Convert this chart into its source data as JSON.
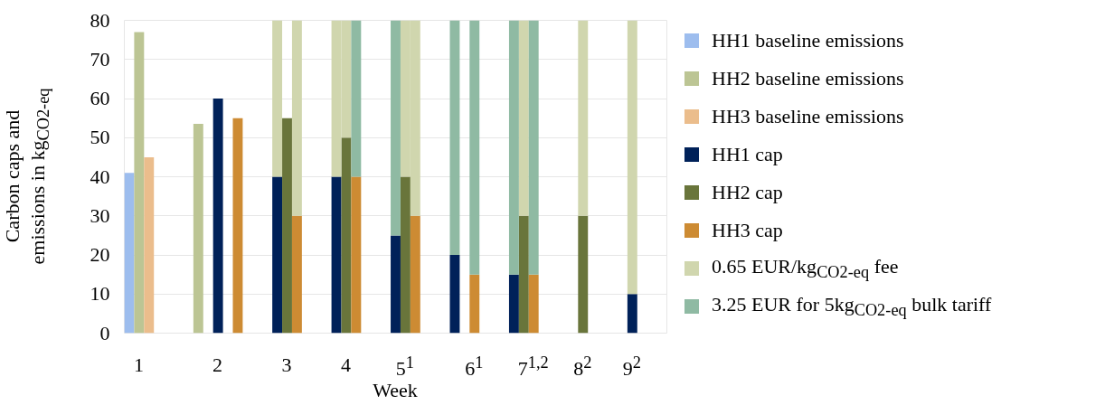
{
  "chart_data": {
    "type": "bar",
    "stacked": true,
    "xlabel": "Week",
    "ylabel": "Carbon caps and emissions in kg$_{CO2-eq}$",
    "categories": [
      null,
      "1",
      null,
      null,
      null,
      null,
      null,
      null,
      null,
      "2",
      null,
      null,
      null,
      null,
      null,
      null,
      "3",
      null,
      null,
      null,
      null,
      null,
      "4",
      null,
      null,
      null,
      null,
      null,
      "5$^{1}$",
      null,
      null,
      null,
      null,
      null,
      null,
      "6$^{1}$",
      null,
      null,
      null,
      null,
      null,
      "7$^{1,2}$",
      null,
      null,
      null,
      null,
      "8$^{2}$",
      null,
      null,
      null,
      null,
      "9$^{2}$",
      null,
      null,
      null
    ],
    "series": [
      {
        "name": "HH1 baseline emissions",
        "color": "#9dbdee",
        "values": [
          41,
          null,
          null,
          null,
          null,
          null,
          null,
          null,
          null,
          null,
          null,
          null,
          null,
          null,
          null,
          null,
          null,
          null,
          null,
          null,
          null,
          null,
          null,
          null,
          null,
          null,
          null,
          null,
          null,
          null,
          null,
          null,
          null,
          null,
          null,
          null,
          null,
          null,
          null,
          null,
          null,
          null,
          null,
          null,
          null,
          null,
          null,
          null,
          null,
          null,
          null,
          null,
          null,
          null,
          null
        ]
      },
      {
        "name": "HH2 baseline emissions",
        "color": "#bcc594",
        "values": [
          null,
          77,
          null,
          null,
          null,
          null,
          null,
          53.5,
          null,
          null,
          null,
          null,
          null,
          null,
          null,
          null,
          null,
          null,
          null,
          null,
          null,
          null,
          null,
          null,
          null,
          null,
          null,
          null,
          null,
          null,
          null,
          null,
          null,
          null,
          null,
          null,
          null,
          null,
          null,
          null,
          null,
          null,
          null,
          null,
          null,
          null,
          null,
          null,
          null,
          null,
          null,
          null,
          null,
          null,
          null
        ]
      },
      {
        "name": "HH3 baseline emissions",
        "color": "#ebbd8c",
        "values": [
          null,
          null,
          45,
          null,
          null,
          null,
          null,
          null,
          null,
          null,
          null,
          null,
          null,
          null,
          null,
          null,
          null,
          null,
          null,
          null,
          null,
          null,
          null,
          null,
          null,
          null,
          null,
          null,
          null,
          null,
          null,
          null,
          null,
          null,
          null,
          null,
          null,
          null,
          null,
          null,
          null,
          null,
          null,
          null,
          null,
          null,
          null,
          null,
          null,
          null,
          null,
          null,
          null,
          null,
          null
        ]
      },
      {
        "name": "HH1 cap",
        "color": "#002159",
        "values": [
          null,
          null,
          null,
          null,
          null,
          null,
          null,
          null,
          null,
          60,
          null,
          null,
          null,
          null,
          null,
          40,
          null,
          null,
          null,
          null,
          null,
          40,
          null,
          null,
          null,
          null,
          null,
          25,
          null,
          null,
          null,
          null,
          null,
          20,
          null,
          null,
          null,
          null,
          null,
          15,
          null,
          null,
          null,
          null,
          null,
          null,
          null,
          null,
          null,
          null,
          null,
          10,
          null,
          null,
          null
        ]
      },
      {
        "name": "HH2 cap",
        "color": "#69753b",
        "values": [
          null,
          null,
          null,
          null,
          null,
          null,
          null,
          null,
          null,
          null,
          null,
          null,
          null,
          null,
          null,
          null,
          55,
          null,
          null,
          null,
          null,
          null,
          50,
          null,
          null,
          null,
          null,
          null,
          40,
          null,
          null,
          null,
          null,
          null,
          null,
          null,
          null,
          null,
          null,
          null,
          30,
          null,
          null,
          null,
          null,
          null,
          30,
          null,
          null,
          null,
          null,
          null,
          null,
          null,
          null
        ]
      },
      {
        "name": "HH3 cap",
        "color": "#cd8b33",
        "values": [
          null,
          null,
          null,
          null,
          null,
          null,
          null,
          null,
          null,
          null,
          null,
          55,
          null,
          null,
          null,
          null,
          null,
          30,
          null,
          null,
          null,
          null,
          null,
          40,
          null,
          null,
          null,
          null,
          null,
          30,
          null,
          null,
          null,
          null,
          null,
          15,
          null,
          null,
          null,
          null,
          null,
          15,
          null,
          null,
          null,
          null,
          null,
          null,
          null,
          null,
          null,
          null,
          null,
          null,
          null
        ]
      },
      {
        "name": "0.65 EUR/kg$_{CO2-eq}$ fee",
        "color": "#d0d6ae",
        "values": [
          null,
          null,
          null,
          null,
          null,
          null,
          null,
          null,
          null,
          null,
          null,
          null,
          null,
          null,
          null,
          40,
          null,
          50,
          null,
          null,
          null,
          40,
          30,
          null,
          null,
          null,
          null,
          null,
          40,
          50,
          null,
          null,
          null,
          null,
          null,
          null,
          null,
          null,
          null,
          null,
          50,
          null,
          null,
          null,
          null,
          null,
          50,
          null,
          null,
          null,
          null,
          70,
          null,
          null,
          null
        ]
      },
      {
        "name": "3.25 EUR for 5kg$_{CO2-eq}$ bulk tariff",
        "color": "#8fbaa3",
        "values": [
          null,
          null,
          null,
          null,
          null,
          null,
          null,
          null,
          null,
          null,
          null,
          null,
          null,
          null,
          null,
          null,
          null,
          null,
          null,
          null,
          null,
          null,
          null,
          40,
          null,
          null,
          null,
          55,
          null,
          null,
          null,
          null,
          null,
          60,
          null,
          65,
          null,
          null,
          null,
          65,
          null,
          65,
          null,
          null,
          null,
          null,
          null,
          null,
          null,
          null,
          null,
          null,
          null,
          null,
          null
        ]
      }
    ],
    "ylim": [
      0,
      80
    ],
    "yticks": [
      0,
      10,
      20,
      30,
      40,
      50,
      60,
      70,
      80
    ],
    "grid": "y",
    "legend": "right"
  }
}
